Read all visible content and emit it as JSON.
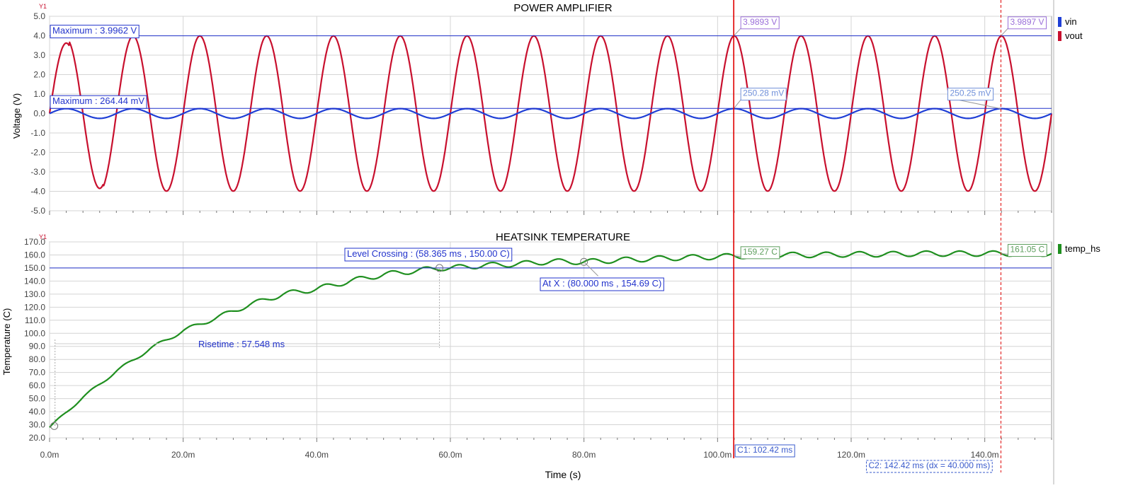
{
  "colors": {
    "vin": "#1f3fd6",
    "vout": "#c8102e",
    "temp_hs": "#1f8f1f",
    "cursor": "#e00000",
    "annotation": "#2233cc",
    "grid": "#d4d4d4",
    "axis": "#333333"
  },
  "chart_data": [
    {
      "type": "line",
      "title": "POWER AMPLIFIER",
      "axis_tag": "Y1",
      "ylabel": "Voltage (V)",
      "xlabel": "",
      "xlim": [
        0,
        150
      ],
      "ylim": [
        -5,
        5
      ],
      "x_unit": "ms",
      "yticks": [
        "5.0",
        "4.0",
        "3.0",
        "2.0",
        "1.0",
        "0.0",
        "-1.0",
        "-2.0",
        "-3.0",
        "-4.0",
        "-5.0"
      ],
      "grid": true,
      "legend_position": "right",
      "series": [
        {
          "name": "vin",
          "color": "#1f3fd6",
          "waveform": "sine",
          "amplitude_V": 0.25,
          "frequency_hz": 100,
          "peak_V": 0.26444
        },
        {
          "name": "vout",
          "color": "#c8102e",
          "waveform": "inverted sine",
          "amplitude_V": 3.99,
          "frequency_hz": 100,
          "peak_V": 3.9962
        }
      ],
      "annotations": [
        {
          "label": "Maximum : 3.9962 V",
          "y": 3.9962,
          "series": "vout"
        },
        {
          "label": "Maximum : 264.44 mV",
          "y": 0.26444,
          "series": "vin"
        },
        {
          "label": "3.9893 V",
          "x": 102.42,
          "y": 3.9893,
          "cursor": "C1",
          "series": "vout"
        },
        {
          "label": "3.9897 V",
          "x": 142.42,
          "y": 3.9897,
          "cursor": "C2",
          "series": "vout"
        },
        {
          "label": "250.28 mV",
          "x": 102.42,
          "y": 0.25028,
          "cursor": "C1",
          "series": "vin"
        },
        {
          "label": "250.25 mV",
          "x": 142.42,
          "y": 0.25025,
          "cursor": "C2",
          "series": "vin"
        }
      ]
    },
    {
      "type": "line",
      "title": "HEATSINK TEMPERATURE",
      "axis_tag": "Y1",
      "ylabel": "Temperature (C)",
      "xlabel": "Time (s)",
      "xlim": [
        0,
        150
      ],
      "ylim": [
        20,
        170
      ],
      "x_unit": "ms",
      "yticks": [
        "170.0",
        "160.0",
        "150.0",
        "140.0",
        "130.0",
        "120.0",
        "110.0",
        "100.0",
        "90.0",
        "80.0",
        "70.0",
        "60.0",
        "50.0",
        "40.0",
        "30.0",
        "20.0"
      ],
      "xticks": [
        "0.0m",
        "20.0m",
        "40.0m",
        "60.0m",
        "80.0m",
        "100.0m",
        "120.0m",
        "140.0m"
      ],
      "grid": true,
      "legend_position": "right",
      "series": [
        {
          "name": "temp_hs",
          "color": "#1f8f1f",
          "points": [
            [
              0,
              28
            ],
            [
              5,
              51
            ],
            [
              10,
              71
            ],
            [
              15,
              88
            ],
            [
              20,
              102
            ],
            [
              25,
              112
            ],
            [
              30,
              122
            ],
            [
              35,
              130
            ],
            [
              40,
              134
            ],
            [
              45,
              140
            ],
            [
              50,
              145
            ],
            [
              55,
              148
            ],
            [
              58.365,
              150
            ],
            [
              60,
              150
            ],
            [
              65,
              152
            ],
            [
              70,
              153
            ],
            [
              75,
              155
            ],
            [
              80,
              154.69
            ],
            [
              85,
              156
            ],
            [
              90,
              157
            ],
            [
              95,
              158
            ],
            [
              100,
              158.5
            ],
            [
              102.42,
              159.27
            ],
            [
              105,
              159
            ],
            [
              110,
              160
            ],
            [
              115,
              160
            ],
            [
              120,
              160.5
            ],
            [
              125,
              160.5
            ],
            [
              130,
              161
            ],
            [
              135,
              161
            ],
            [
              140,
              161
            ],
            [
              142.42,
              161.05
            ],
            [
              145,
              161
            ],
            [
              150,
              161
            ]
          ],
          "ripple_amplitude": 2
        }
      ],
      "annotations": [
        {
          "label": "Level Crossing : (58.365 ms , 150.00 C)",
          "x": 58.365,
          "y": 150
        },
        {
          "label": "At X : (80.000 ms , 154.69 C)",
          "x": 80,
          "y": 154.69
        },
        {
          "label": "Risetime : 57.548 ms",
          "x_start": 0.817,
          "x_end": 58.365,
          "y": 92
        },
        {
          "label": "159.27 C",
          "x": 102.42,
          "y": 159.27,
          "cursor": "C1"
        },
        {
          "label": "161.05 C",
          "x": 142.42,
          "y": 161.05,
          "cursor": "C2"
        }
      ],
      "reference_line_y": 150
    }
  ],
  "cursors": {
    "c1": {
      "label": "C1: 102.42 ms",
      "x": 102.42
    },
    "c2": {
      "label": "C2: 142.42 ms (dx = 40.000 ms)",
      "x": 142.42
    }
  }
}
